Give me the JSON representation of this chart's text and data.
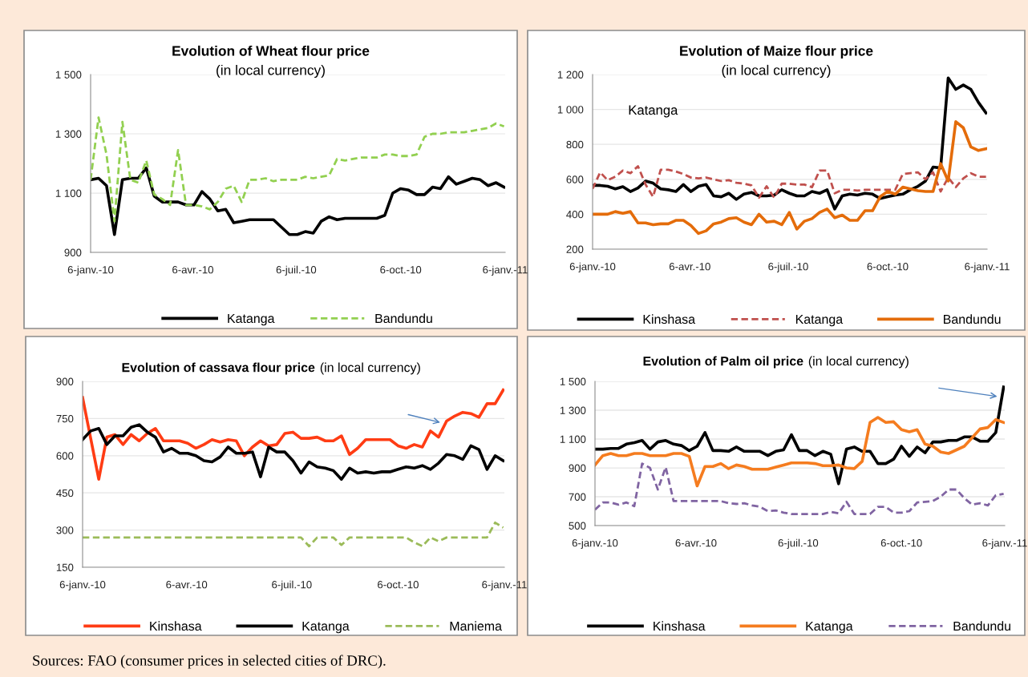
{
  "chart_data": [
    {
      "type": "line",
      "title": "Evolution of Wheat flour price",
      "subtitle": "(in local currency)",
      "x": [
        "2010-01-06",
        "2010-01-13",
        "2010-01-20",
        "2010-01-27",
        "2010-02-03",
        "2010-02-10",
        "2010-02-17",
        "2010-02-24",
        "2010-03-03",
        "2010-03-10",
        "2010-03-17",
        "2010-03-24",
        "2010-03-31",
        "2010-04-07",
        "2010-04-14",
        "2010-04-21",
        "2010-04-28",
        "2010-05-05",
        "2010-05-12",
        "2010-05-19",
        "2010-05-26",
        "2010-06-02",
        "2010-06-09",
        "2010-06-16",
        "2010-06-23",
        "2010-06-30",
        "2010-07-07",
        "2010-07-14",
        "2010-07-21",
        "2010-07-28",
        "2010-08-04",
        "2010-08-11",
        "2010-08-18",
        "2010-08-25",
        "2010-09-01",
        "2010-09-08",
        "2010-09-15",
        "2010-09-22",
        "2010-09-29",
        "2010-10-06",
        "2010-10-13",
        "2010-10-20",
        "2010-10-27",
        "2010-11-03",
        "2010-11-10",
        "2010-11-17",
        "2010-11-24",
        "2010-12-01",
        "2010-12-08",
        "2010-12-15",
        "2010-12-22",
        "2010-12-29",
        "2011-01-05"
      ],
      "series": [
        {
          "name": "Katanga",
          "color": "#000000",
          "line_style": "solid",
          "values": [
            1145,
            1150,
            1125,
            960,
            1145,
            1150,
            1150,
            1185,
            1090,
            1070,
            1070,
            1070,
            1060,
            1060,
            1105,
            1080,
            1040,
            1045,
            1000,
            1005,
            1010,
            1010,
            1010,
            1010,
            985,
            960,
            960,
            970,
            965,
            1005,
            1020,
            1010,
            1015,
            1015,
            1015,
            1015,
            1015,
            1025,
            1100,
            1115,
            1110,
            1095,
            1095,
            1120,
            1115,
            1155,
            1130,
            1140,
            1150,
            1145,
            1125,
            1135,
            1120
          ]
        },
        {
          "name": "Bandundu",
          "color": "#92d050",
          "line_style": "dashed",
          "values": [
            1145,
            1355,
            1230,
            1005,
            1340,
            1145,
            1135,
            1210,
            1095,
            1080,
            1060,
            1245,
            1060,
            1060,
            1055,
            1045,
            1070,
            1115,
            1125,
            1070,
            1145,
            1145,
            1150,
            1140,
            1145,
            1145,
            1145,
            1155,
            1150,
            1155,
            1160,
            1215,
            1210,
            1215,
            1220,
            1220,
            1220,
            1230,
            1230,
            1225,
            1225,
            1230,
            1290,
            1300,
            1300,
            1305,
            1305,
            1305,
            1310,
            1315,
            1320,
            1335,
            1325
          ]
        }
      ],
      "xlim": [
        "2010-01-06",
        "2011-01-06"
      ],
      "xticks": [
        {
          "value": "2010-01-06",
          "label": "6-janv.-10"
        },
        {
          "value": "2010-04-06",
          "label": "6-avr.-10"
        },
        {
          "value": "2010-07-06",
          "label": "6-juil.-10"
        },
        {
          "value": "2010-10-06",
          "label": "6-oct.-10"
        },
        {
          "value": "2011-01-06",
          "label": "6-janv.-11"
        }
      ],
      "ylim": [
        900,
        1500
      ],
      "yticks": [
        900,
        {
          "value": 1100,
          "label": "1 100"
        },
        {
          "value": 1300,
          "label": "1 300"
        },
        {
          "value": 1500,
          "label": "1 500"
        }
      ],
      "grid": "y",
      "legend": "bottom"
    },
    {
      "type": "line",
      "title": "Evolution of Maize flour price",
      "subtitle": "(in local currency)",
      "annotations": [
        "Katanga"
      ],
      "x": [
        "2010-01-06",
        "2010-01-13",
        "2010-01-20",
        "2010-01-27",
        "2010-02-03",
        "2010-02-10",
        "2010-02-17",
        "2010-02-24",
        "2010-03-03",
        "2010-03-10",
        "2010-03-17",
        "2010-03-24",
        "2010-03-31",
        "2010-04-07",
        "2010-04-14",
        "2010-04-21",
        "2010-04-28",
        "2010-05-05",
        "2010-05-12",
        "2010-05-19",
        "2010-05-26",
        "2010-06-02",
        "2010-06-09",
        "2010-06-16",
        "2010-06-23",
        "2010-06-30",
        "2010-07-07",
        "2010-07-14",
        "2010-07-21",
        "2010-07-28",
        "2010-08-04",
        "2010-08-11",
        "2010-08-18",
        "2010-08-25",
        "2010-09-01",
        "2010-09-08",
        "2010-09-15",
        "2010-09-22",
        "2010-09-29",
        "2010-10-06",
        "2010-10-13",
        "2010-10-20",
        "2010-10-27",
        "2010-11-03",
        "2010-11-10",
        "2010-11-17",
        "2010-11-24",
        "2010-12-01",
        "2010-12-08",
        "2010-12-15",
        "2010-12-22",
        "2010-12-29",
        "2011-01-05"
      ],
      "series": [
        {
          "name": "Kinshasa",
          "color": "#000000",
          "line_style": "solid",
          "values": [
            565,
            565,
            560,
            545,
            558,
            530,
            550,
            590,
            578,
            545,
            540,
            530,
            570,
            530,
            560,
            570,
            505,
            500,
            520,
            485,
            515,
            525,
            505,
            505,
            510,
            540,
            520,
            505,
            505,
            530,
            520,
            540,
            430,
            505,
            515,
            510,
            520,
            515,
            490,
            500,
            510,
            515,
            540,
            560,
            590,
            670,
            665,
            1180,
            1115,
            1140,
            1115,
            1040,
            980
          ]
        },
        {
          "name": "Katanga",
          "color": "#c0504d",
          "line_style": "dashed",
          "values": [
            545,
            640,
            595,
            615,
            650,
            635,
            675,
            570,
            500,
            655,
            655,
            645,
            630,
            610,
            605,
            610,
            600,
            590,
            595,
            580,
            575,
            565,
            495,
            560,
            495,
            575,
            575,
            570,
            570,
            555,
            650,
            650,
            520,
            540,
            540,
            535,
            540,
            540,
            540,
            540,
            540,
            630,
            635,
            640,
            600,
            640,
            530,
            610,
            555,
            605,
            635,
            615,
            615
          ]
        },
        {
          "name": "Bandundu",
          "color": "#e46c0a",
          "line_style": "solid",
          "values": [
            400,
            400,
            400,
            415,
            405,
            415,
            350,
            350,
            340,
            345,
            345,
            365,
            365,
            335,
            290,
            305,
            345,
            355,
            375,
            380,
            355,
            340,
            400,
            355,
            360,
            340,
            410,
            315,
            360,
            375,
            410,
            430,
            380,
            395,
            365,
            365,
            420,
            420,
            500,
            530,
            515,
            555,
            545,
            535,
            530,
            530,
            690,
            590,
            930,
            895,
            785,
            765,
            775
          ]
        }
      ],
      "xlim": [
        "2010-01-06",
        "2011-01-06"
      ],
      "xticks": [
        {
          "value": "2010-01-06",
          "label": "6-janv.-10"
        },
        {
          "value": "2010-04-06",
          "label": "6-avr.-10"
        },
        {
          "value": "2010-07-06",
          "label": "6-juil.-10"
        },
        {
          "value": "2010-10-06",
          "label": "6-oct.-10"
        },
        {
          "value": "2011-01-06",
          "label": "6-janv.-11"
        }
      ],
      "ylim": [
        200,
        1200
      ],
      "yticks": [
        200,
        400,
        600,
        800,
        {
          "value": 1000,
          "label": "1 000"
        },
        {
          "value": 1200,
          "label": "1 200"
        }
      ],
      "grid": "y",
      "legend": "bottom"
    },
    {
      "type": "line",
      "title": "Evolution of cassava flour price",
      "subtitle": "(in local currency)",
      "x": [
        "2010-01-06",
        "2010-01-13",
        "2010-01-20",
        "2010-01-27",
        "2010-02-03",
        "2010-02-10",
        "2010-02-17",
        "2010-02-24",
        "2010-03-03",
        "2010-03-10",
        "2010-03-17",
        "2010-03-24",
        "2010-03-31",
        "2010-04-07",
        "2010-04-14",
        "2010-04-21",
        "2010-04-28",
        "2010-05-05",
        "2010-05-12",
        "2010-05-19",
        "2010-05-26",
        "2010-06-02",
        "2010-06-09",
        "2010-06-16",
        "2010-06-23",
        "2010-06-30",
        "2010-07-07",
        "2010-07-14",
        "2010-07-21",
        "2010-07-28",
        "2010-08-04",
        "2010-08-11",
        "2010-08-18",
        "2010-08-25",
        "2010-09-01",
        "2010-09-08",
        "2010-09-15",
        "2010-09-22",
        "2010-09-29",
        "2010-10-06",
        "2010-10-13",
        "2010-10-20",
        "2010-10-27",
        "2010-11-03",
        "2010-11-10",
        "2010-11-17",
        "2010-11-24",
        "2010-12-01",
        "2010-12-08",
        "2010-12-15",
        "2010-12-22",
        "2010-12-29",
        "2011-01-05"
      ],
      "series": [
        {
          "name": "Kinshasa",
          "color": "#ff3c14",
          "line_style": "solid",
          "values": [
            835,
            670,
            505,
            675,
            685,
            645,
            685,
            660,
            690,
            710,
            660,
            660,
            660,
            650,
            630,
            645,
            665,
            655,
            665,
            660,
            600,
            635,
            660,
            640,
            645,
            690,
            695,
            670,
            670,
            675,
            660,
            660,
            680,
            605,
            630,
            665,
            665,
            665,
            665,
            640,
            630,
            645,
            635,
            700,
            675,
            740,
            760,
            775,
            770,
            755,
            810,
            810,
            865
          ]
        },
        {
          "name": "Katanga",
          "color": "#000000",
          "line_style": "solid",
          "values": [
            665,
            700,
            710,
            645,
            680,
            680,
            715,
            725,
            695,
            675,
            615,
            630,
            610,
            610,
            600,
            580,
            575,
            595,
            635,
            610,
            610,
            615,
            515,
            635,
            615,
            615,
            580,
            530,
            575,
            555,
            550,
            540,
            505,
            550,
            530,
            535,
            530,
            535,
            535,
            545,
            555,
            550,
            560,
            545,
            570,
            605,
            600,
            585,
            640,
            625,
            545,
            600,
            580
          ]
        },
        {
          "name": "Maniema",
          "color": "#9bbb59",
          "line_style": "dashed",
          "values": [
            270,
            270,
            270,
            270,
            270,
            270,
            270,
            270,
            270,
            270,
            270,
            270,
            270,
            270,
            270,
            270,
            270,
            270,
            270,
            270,
            270,
            270,
            270,
            270,
            270,
            270,
            270,
            270,
            235,
            270,
            270,
            270,
            240,
            270,
            270,
            270,
            270,
            270,
            270,
            270,
            270,
            250,
            235,
            270,
            255,
            270,
            270,
            270,
            270,
            270,
            270,
            330,
            310
          ]
        }
      ],
      "xlim": [
        "2010-01-06",
        "2011-01-06"
      ],
      "xticks": [
        {
          "value": "2010-01-06",
          "label": "6-janv.-10"
        },
        {
          "value": "2010-04-06",
          "label": "6-avr.-10"
        },
        {
          "value": "2010-07-06",
          "label": "6-juil.-10"
        },
        {
          "value": "2010-10-06",
          "label": "6-oct.-10"
        },
        {
          "value": "2011-01-06",
          "label": "6-janv.-11"
        }
      ],
      "ylim": [
        150,
        900
      ],
      "yticks": [
        150,
        300,
        450,
        600,
        750,
        900
      ],
      "grid": "y",
      "legend": "bottom"
    },
    {
      "type": "line",
      "title": "Evolution of Palm oil price",
      "subtitle": "(in local currency)",
      "annotations": [
        "Sources: FAO (consumer prices in selected cities of DRC)."
      ],
      "x": [
        "2010-01-06",
        "2010-01-13",
        "2010-01-20",
        "2010-01-27",
        "2010-02-03",
        "2010-02-10",
        "2010-02-17",
        "2010-02-24",
        "2010-03-03",
        "2010-03-10",
        "2010-03-17",
        "2010-03-24",
        "2010-03-31",
        "2010-04-07",
        "2010-04-14",
        "2010-04-21",
        "2010-04-28",
        "2010-05-05",
        "2010-05-12",
        "2010-05-19",
        "2010-05-26",
        "2010-06-02",
        "2010-06-09",
        "2010-06-16",
        "2010-06-23",
        "2010-06-30",
        "2010-07-07",
        "2010-07-14",
        "2010-07-21",
        "2010-07-28",
        "2010-08-04",
        "2010-08-11",
        "2010-08-18",
        "2010-08-25",
        "2010-09-01",
        "2010-09-08",
        "2010-09-15",
        "2010-09-22",
        "2010-09-29",
        "2010-10-06",
        "2010-10-13",
        "2010-10-20",
        "2010-10-27",
        "2010-11-03",
        "2010-11-10",
        "2010-11-17",
        "2010-11-24",
        "2010-12-01",
        "2010-12-08",
        "2010-12-15",
        "2010-12-22",
        "2010-12-29",
        "2011-01-05"
      ],
      "series": [
        {
          "name": "Kinshasa",
          "color": "#000000",
          "line_style": "solid",
          "values": [
            1030,
            1030,
            1035,
            1035,
            1065,
            1075,
            1090,
            1030,
            1080,
            1090,
            1065,
            1055,
            1020,
            1050,
            1145,
            1020,
            1020,
            1015,
            1045,
            1015,
            1015,
            1015,
            985,
            1015,
            1025,
            1130,
            1020,
            1020,
            985,
            1015,
            995,
            790,
            1030,
            1045,
            1015,
            1015,
            930,
            930,
            960,
            1050,
            980,
            1045,
            1005,
            1080,
            1080,
            1090,
            1090,
            1115,
            1115,
            1085,
            1085,
            1145,
            1460
          ]
        },
        {
          "name": "Katanga",
          "color": "#f57c1f",
          "line_style": "solid",
          "values": [
            920,
            985,
            1000,
            985,
            985,
            1000,
            1000,
            985,
            985,
            985,
            1000,
            1000,
            980,
            775,
            910,
            910,
            930,
            895,
            920,
            910,
            890,
            890,
            890,
            905,
            920,
            935,
            935,
            935,
            930,
            915,
            915,
            920,
            900,
            895,
            945,
            1215,
            1250,
            1215,
            1220,
            1165,
            1150,
            1165,
            1065,
            1050,
            1010,
            1000,
            1025,
            1050,
            1110,
            1170,
            1180,
            1235,
            1215
          ]
        },
        {
          "name": "Bandundu",
          "color": "#8064a2",
          "line_style": "dashed",
          "values": [
            610,
            660,
            660,
            645,
            660,
            635,
            930,
            900,
            750,
            905,
            670,
            670,
            670,
            670,
            670,
            670,
            670,
            655,
            650,
            655,
            640,
            630,
            600,
            605,
            590,
            580,
            580,
            580,
            580,
            580,
            595,
            585,
            665,
            580,
            580,
            580,
            630,
            630,
            590,
            590,
            600,
            660,
            665,
            670,
            700,
            750,
            750,
            690,
            645,
            655,
            640,
            710,
            720
          ]
        }
      ],
      "xlim": [
        "2010-01-06",
        "2011-01-06"
      ],
      "xticks": [
        {
          "value": "2010-01-06",
          "label": "6-janv.-10"
        },
        {
          "value": "2010-04-06",
          "label": "6-avr.-10"
        },
        {
          "value": "2010-07-06",
          "label": "6-juil.-10"
        },
        {
          "value": "2010-10-06",
          "label": "6-oct.-10"
        },
        {
          "value": "2011-01-06",
          "label": "6-janv.-11"
        }
      ],
      "ylim": [
        500,
        1500
      ],
      "yticks": [
        500,
        700,
        900,
        {
          "value": 1100,
          "label": "1 100"
        },
        {
          "value": 1300,
          "label": "1 300"
        },
        {
          "value": 1500,
          "label": "1 500"
        }
      ],
      "grid": "y",
      "legend": "bottom"
    }
  ]
}
